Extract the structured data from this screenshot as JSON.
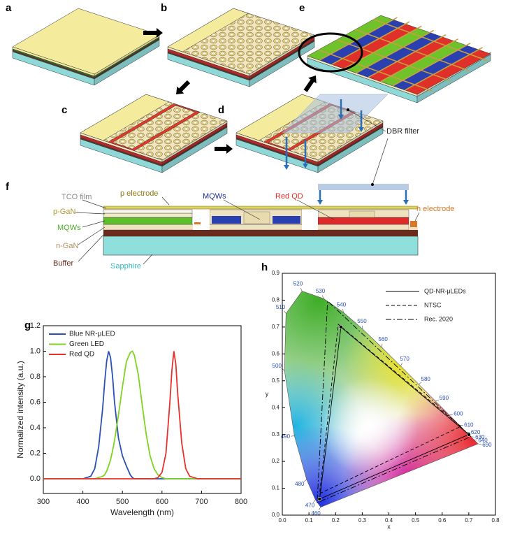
{
  "panel_labels": [
    "a",
    "b",
    "c",
    "d",
    "e",
    "f",
    "g",
    "h"
  ],
  "diagram": {
    "dbr_label": "DBR filter",
    "tco": "TCO film",
    "p_electrode": "p electrode",
    "p_gan": "p-GaN",
    "mqws_left": "MQWs",
    "n_gan": "n-GaN",
    "buffer": "Buffer",
    "sapphire": "Sapphire",
    "mqws_center": "MQWs",
    "red_qd": "Red QD",
    "n_electrode": "n electrode"
  },
  "chart_data": [
    {
      "type": "line",
      "xlabel": "Wavelength (nm)",
      "ylabel": "Normalized intensity (a.u.)",
      "x": [
        300,
        380,
        400,
        410,
        420,
        430,
        440,
        450,
        455,
        460,
        465,
        470,
        475,
        480,
        490,
        500,
        510,
        520,
        525,
        530,
        540,
        550,
        560,
        570,
        580,
        590,
        600,
        610,
        620,
        625,
        630,
        635,
        640,
        650,
        660,
        670,
        680,
        690,
        700,
        800
      ],
      "series": [
        {
          "name": "Blue NR-μLED",
          "color": "#2a4fb5",
          "values": [
            0,
            0,
            0,
            0.01,
            0.02,
            0.08,
            0.25,
            0.55,
            0.75,
            0.92,
            1.0,
            0.95,
            0.8,
            0.6,
            0.32,
            0.18,
            0.1,
            0.03,
            0.01,
            0,
            0,
            0,
            0,
            0,
            0,
            0,
            0,
            0,
            0,
            0,
            0,
            0,
            0,
            0,
            0,
            0,
            0,
            0,
            0,
            0
          ]
        },
        {
          "name": "Green LED",
          "color": "#7ed321",
          "values": [
            0,
            0,
            0,
            0,
            0,
            0,
            0.01,
            0.02,
            0.03,
            0.06,
            0.1,
            0.15,
            0.22,
            0.3,
            0.5,
            0.72,
            0.92,
            0.99,
            1.0,
            0.97,
            0.82,
            0.58,
            0.35,
            0.18,
            0.08,
            0.03,
            0.01,
            0,
            0,
            0,
            0,
            0,
            0,
            0,
            0,
            0,
            0,
            0,
            0,
            0
          ]
        },
        {
          "name": "Red QD",
          "color": "#e8302a",
          "values": [
            0,
            0,
            0,
            0,
            0,
            0,
            0,
            0,
            0,
            0,
            0,
            0,
            0,
            0,
            0,
            0,
            0,
            0,
            0,
            0,
            0,
            0,
            0,
            0,
            0,
            0.01,
            0.05,
            0.2,
            0.6,
            0.85,
            1.0,
            0.9,
            0.66,
            0.28,
            0.08,
            0.02,
            0.01,
            0,
            0,
            0
          ]
        }
      ],
      "xlim": [
        300,
        800
      ],
      "ylim": [
        -0.115,
        1.2
      ],
      "xticks": [
        300,
        400,
        500,
        600,
        700,
        800
      ],
      "yticks": [
        {
          "value": 0,
          "label": "0.0"
        },
        0.2,
        0.4,
        0.6,
        0.8,
        {
          "value": 1,
          "label": "1.0"
        },
        1.2
      ],
      "legend": "upper left"
    },
    {
      "type": "chromaticity",
      "xlabel": "x",
      "ylabel": "y",
      "xlim": [
        0,
        0.8
      ],
      "ylim": [
        0,
        0.9
      ],
      "xticks": [
        {
          "value": 0,
          "label": "0.0"
        },
        0.1,
        0.2,
        0.3,
        0.4,
        0.5,
        0.6,
        0.7,
        0.8
      ],
      "yticks": [
        {
          "value": 0,
          "label": "0.0"
        },
        0.1,
        0.2,
        0.3,
        0.4,
        0.5,
        0.6,
        0.7,
        0.8,
        0.9
      ],
      "locus": {
        "color": "#2a4fb8",
        "wavelengths": [
          460,
          470,
          480,
          490,
          500,
          510,
          520,
          530,
          540,
          550,
          560,
          570,
          580,
          590,
          600,
          610,
          620,
          630,
          640,
          690
        ],
        "x": [
          0.144,
          0.1241,
          0.0913,
          0.0454,
          0.0082,
          0.0139,
          0.0743,
          0.1547,
          0.2296,
          0.3016,
          0.3731,
          0.4441,
          0.5125,
          0.5752,
          0.627,
          0.6658,
          0.6915,
          0.7079,
          0.719,
          0.7347
        ],
        "y": [
          0.0297,
          0.0578,
          0.1327,
          0.295,
          0.5384,
          0.7502,
          0.8338,
          0.8059,
          0.7543,
          0.6923,
          0.6245,
          0.5547,
          0.4866,
          0.4242,
          0.3725,
          0.334,
          0.3083,
          0.292,
          0.2809,
          0.2653
        ]
      },
      "series": [
        {
          "name": "QD-NR-μLEDs",
          "style": "solid",
          "color": "#000000",
          "markers": true,
          "x": [
            0.7,
            0.22,
            0.14
          ],
          "y": [
            0.3,
            0.7,
            0.06
          ]
        },
        {
          "name": "NTSC",
          "style": "dashed",
          "color": "#000000",
          "markers": false,
          "x": [
            0.67,
            0.21,
            0.14
          ],
          "y": [
            0.33,
            0.71,
            0.08
          ]
        },
        {
          "name": "Rec. 2020",
          "style": "dashdot",
          "color": "#000000",
          "markers": false,
          "x": [
            0.708,
            0.17,
            0.131
          ],
          "y": [
            0.292,
            0.797,
            0.046
          ]
        }
      ],
      "legend": "upper right"
    }
  ]
}
